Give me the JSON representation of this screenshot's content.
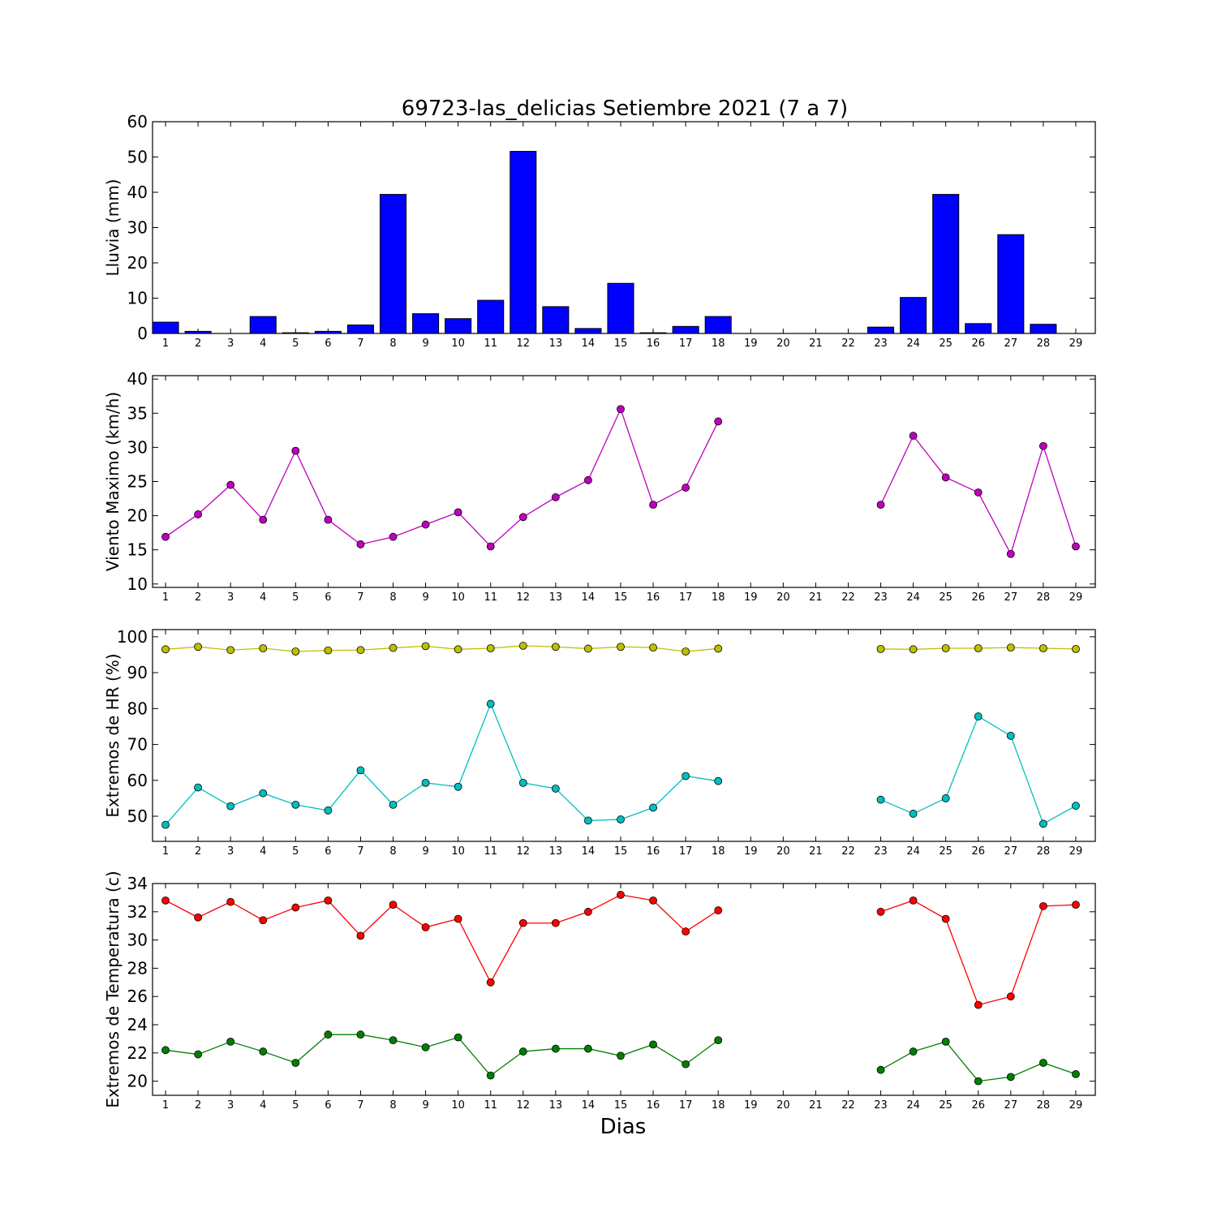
{
  "title": "69723-las_delicias Setiembre 2021  (7 a 7)",
  "xlabel": "Dias",
  "days": [
    1,
    2,
    3,
    4,
    5,
    6,
    7,
    8,
    9,
    10,
    11,
    12,
    13,
    14,
    15,
    16,
    17,
    18,
    19,
    20,
    21,
    22,
    23,
    24,
    25,
    26,
    27,
    28,
    29
  ],
  "chart_data": [
    {
      "type": "bar",
      "ylabel": "Lluvia (mm)",
      "ylim": [
        0,
        60
      ],
      "yticks": [
        0,
        10,
        20,
        30,
        40,
        50,
        60
      ],
      "series": [
        {
          "color": "#0000ff",
          "values": [
            3.2,
            0.6,
            0,
            4.8,
            0.2,
            0.6,
            2.4,
            39.4,
            5.6,
            4.2,
            9.4,
            51.6,
            7.6,
            1.4,
            14.2,
            0.2,
            2.0,
            4.8,
            0,
            0,
            0,
            0,
            1.8,
            10.2,
            39.4,
            2.8,
            28.0,
            2.6,
            0
          ]
        }
      ]
    },
    {
      "type": "line",
      "ylabel": "Viento Maximo (km/h)",
      "ylim": [
        9.5,
        40.5
      ],
      "yticks": [
        10,
        15,
        20,
        25,
        30,
        35,
        40
      ],
      "series": [
        {
          "color": "#bf00bf",
          "values": [
            16.9,
            20.2,
            24.5,
            19.4,
            29.5,
            19.4,
            15.8,
            16.9,
            18.7,
            20.5,
            15.5,
            19.8,
            22.7,
            25.2,
            35.6,
            21.6,
            24.1,
            33.8,
            null,
            null,
            null,
            null,
            21.6,
            31.7,
            25.6,
            23.4,
            14.4,
            30.2,
            15.5
          ]
        }
      ]
    },
    {
      "type": "line",
      "ylabel": "Extremos de HR (%)",
      "ylim": [
        43,
        102
      ],
      "yticks": [
        50,
        60,
        70,
        80,
        90,
        100
      ],
      "series": [
        {
          "color": "#bfbf00",
          "values": [
            96.5,
            97.2,
            96.3,
            96.8,
            95.9,
            96.2,
            96.3,
            96.9,
            97.4,
            96.5,
            96.8,
            97.5,
            97.2,
            96.7,
            97.2,
            97.0,
            95.9,
            96.7,
            null,
            null,
            null,
            null,
            96.6,
            96.5,
            96.8,
            96.8,
            97.0,
            96.8,
            96.6
          ]
        },
        {
          "color": "#00bfbf",
          "values": [
            47.6,
            58.0,
            52.8,
            56.4,
            53.2,
            51.6,
            62.8,
            53.2,
            59.3,
            58.2,
            81.3,
            59.3,
            57.7,
            48.8,
            49.1,
            52.4,
            61.2,
            59.8,
            null,
            null,
            null,
            null,
            54.6,
            50.7,
            55.0,
            77.8,
            72.4,
            47.9,
            52.9
          ]
        }
      ]
    },
    {
      "type": "line",
      "ylabel": "Extremos de Temperatura (c)",
      "ylim": [
        19,
        34
      ],
      "yticks": [
        20,
        22,
        24,
        26,
        28,
        30,
        32,
        34
      ],
      "series": [
        {
          "color": "#ff0000",
          "values": [
            32.8,
            31.6,
            32.7,
            31.4,
            32.3,
            32.8,
            30.3,
            32.5,
            30.9,
            31.5,
            27.0,
            31.2,
            31.2,
            32.0,
            33.2,
            32.8,
            30.6,
            32.1,
            null,
            null,
            null,
            null,
            32.0,
            32.8,
            31.5,
            25.4,
            26.0,
            32.4,
            32.5
          ]
        },
        {
          "color": "#008000",
          "values": [
            22.2,
            21.9,
            22.8,
            22.1,
            21.3,
            23.3,
            23.3,
            22.9,
            22.4,
            23.1,
            20.4,
            22.1,
            22.3,
            22.3,
            21.8,
            22.6,
            21.2,
            22.9,
            null,
            null,
            null,
            null,
            20.8,
            22.1,
            22.8,
            20.0,
            20.3,
            21.3,
            20.5
          ]
        }
      ]
    }
  ]
}
